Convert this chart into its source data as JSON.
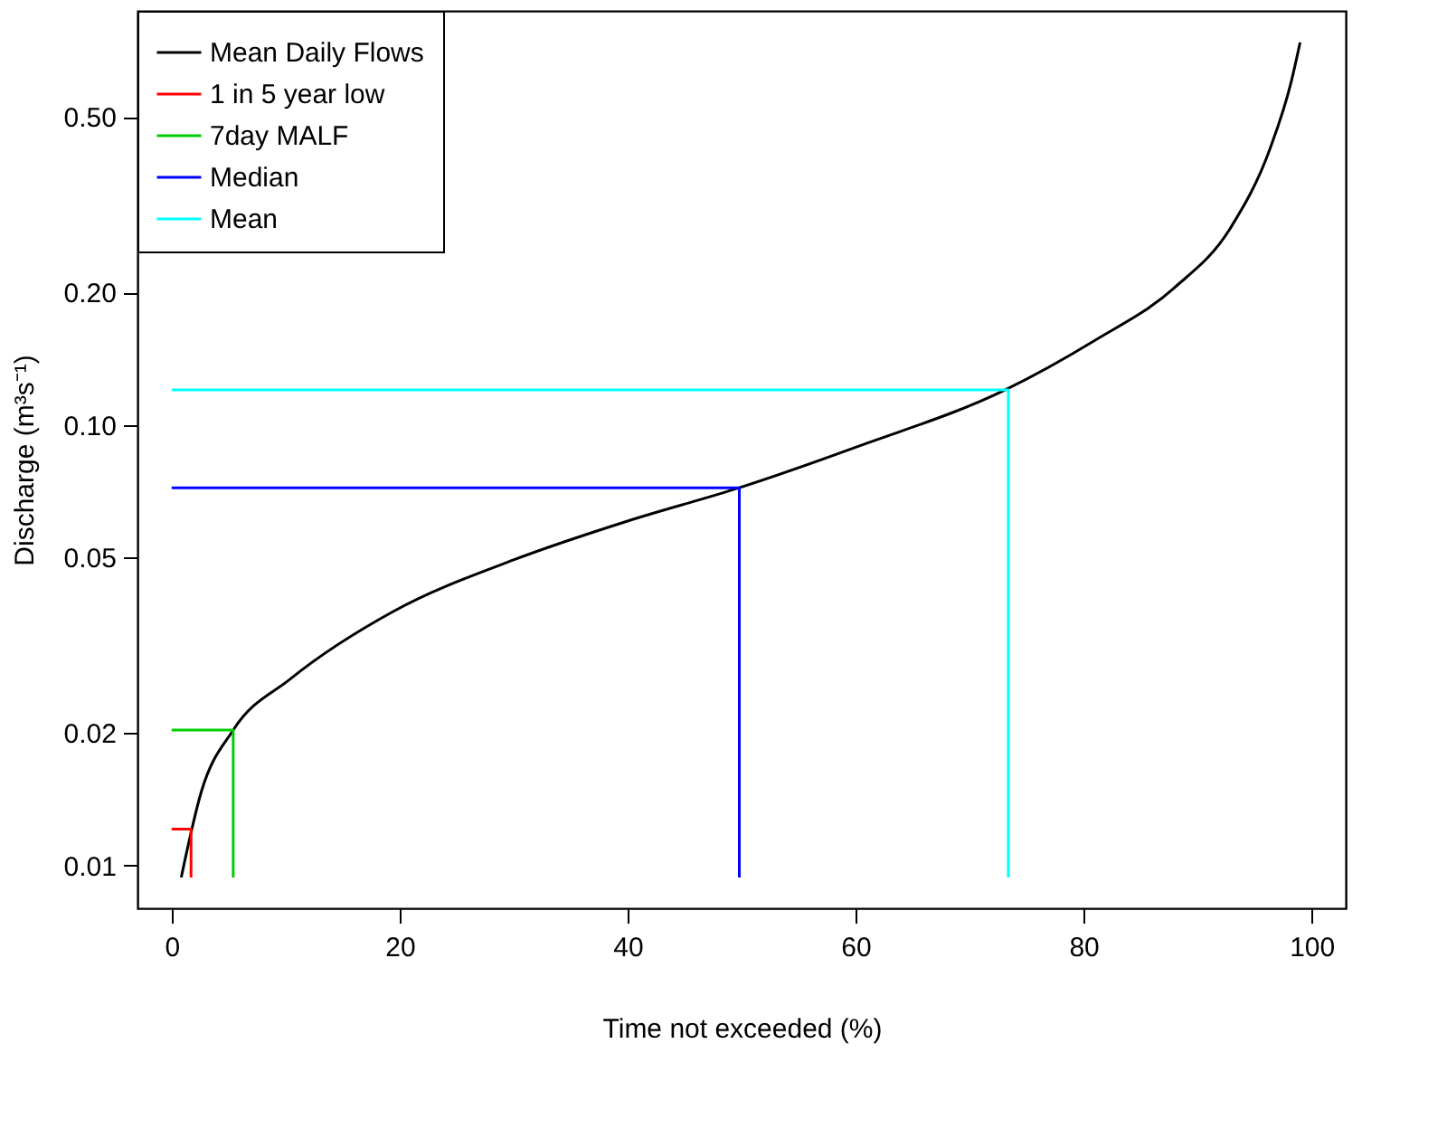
{
  "chart_data": {
    "type": "line",
    "xlabel": "Time not exceeded (%)",
    "ylabel": "Discharge (m³s⁻¹)",
    "series": [
      {
        "name": "Mean Daily Flows",
        "color": "#000000",
        "x": [
          0.84,
          2.6,
          5.4,
          10.4,
          19.5,
          30.1,
          40,
          49.8,
          60.4,
          73.1,
          80.9,
          87.9,
          92.9,
          96.4,
          98.2,
          99.0
        ],
        "values": [
          0.0094,
          0.0147,
          0.0203,
          0.0265,
          0.0378,
          0.0495,
          0.0605,
          0.072,
          0.0897,
          0.12,
          0.155,
          0.204,
          0.28,
          0.426,
          0.598,
          0.738
        ]
      },
      {
        "name": "1 in 5 year low",
        "color": "#ff0000",
        "x": [
          0,
          1.7,
          1.7
        ],
        "values": [
          0.0121,
          0.0121,
          0.0094
        ]
      },
      {
        "name": "7day MALF",
        "color": "#00cd00",
        "x": [
          0,
          5.4,
          5.4
        ],
        "values": [
          0.0203,
          0.0203,
          0.0094
        ]
      },
      {
        "name": "Median",
        "color": "#0000ff",
        "x": [
          0,
          49.8,
          49.8
        ],
        "values": [
          0.072,
          0.072,
          0.0094
        ]
      },
      {
        "name": "Mean",
        "color": "#00ffff",
        "x": [
          0,
          73.4,
          73.4
        ],
        "values": [
          0.12,
          0.12,
          0.0094
        ]
      }
    ],
    "log": "y",
    "xlim": [
      -3,
      103
    ],
    "xticks": [
      0,
      20,
      40,
      60,
      80,
      100
    ],
    "ylim": [
      0.008,
      0.87
    ],
    "yticks": [
      {
        "value": 0.01,
        "label": "0.01"
      },
      {
        "value": 0.02,
        "label": "0.02"
      },
      {
        "value": 0.05,
        "label": "0.05"
      },
      {
        "value": 0.1,
        "label": "0.10"
      },
      {
        "value": 0.2,
        "label": "0.20"
      },
      {
        "value": 0.5,
        "label": "0.50"
      }
    ],
    "legend": "top left",
    "grid": false,
    "marker": "none",
    "line_style": "solid"
  }
}
